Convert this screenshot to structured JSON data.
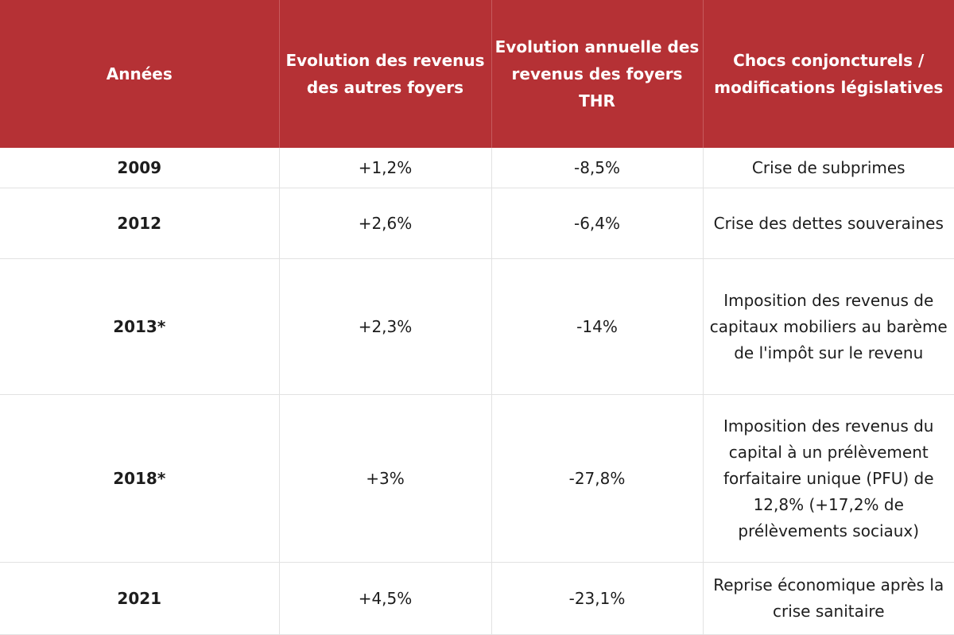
{
  "headers": [
    "Années",
    "Evolution des revenus des autres foyers",
    "Evolution annuelle des revenus des foyers THR",
    "Chocs conjoncturels / modifications législatives"
  ],
  "colors": {
    "header_background": "#b53135",
    "header_text": "#ffffff",
    "body_text": "#1d1d1d",
    "grid_line": "#e2e2e2"
  },
  "rows": [
    {
      "year": "2009",
      "others": "+1,2%",
      "thr": "-8,5%",
      "shock": "Crise de subprimes"
    },
    {
      "year": "2012",
      "others": "+2,6%",
      "thr": "-6,4%",
      "shock": "Crise des dettes souveraines"
    },
    {
      "year": "2013*",
      "others": "+2,3%",
      "thr": "-14%",
      "shock": "Imposition des revenus de capitaux mobiliers au barème de l'impôt sur le revenu"
    },
    {
      "year": "2018*",
      "others": "+3%",
      "thr": "-27,8%",
      "shock": "Imposition des revenus du capital à un prélèvement forfaitaire unique (PFU) de 12,8% (+17,2% de prélèvements sociaux)"
    },
    {
      "year": "2021",
      "others": "+4,5%",
      "thr": "-23,1%",
      "shock": "Reprise économique après la crise sanitaire"
    }
  ]
}
